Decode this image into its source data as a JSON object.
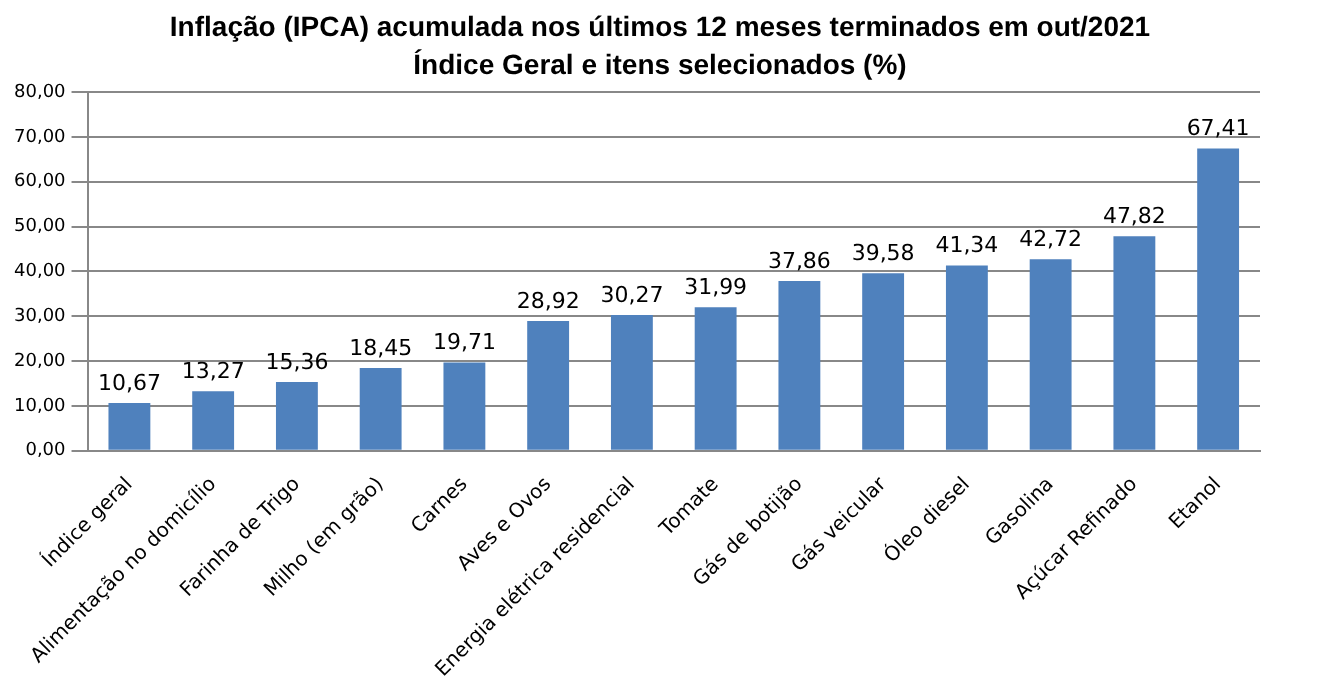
{
  "chart_data": {
    "type": "bar",
    "title": "Inflação (IPCA) acumulada nos últimos 12 meses terminados em out/2021",
    "subtitle": "Índice Geral e itens selecionados (%)",
    "categories": [
      "Índice geral",
      "Alimentação no domicílio",
      "Farinha de Trigo",
      "Milho (em grão)",
      "Carnes",
      "Aves e Ovos",
      "Energia elétrica residencial",
      "Tomate",
      "Gás de botijão",
      "Gás veicular",
      "Óleo diesel",
      "Gasolina",
      "Açúcar Refinado",
      "Etanol"
    ],
    "values": [
      10.67,
      13.27,
      15.36,
      18.45,
      19.71,
      28.92,
      30.27,
      31.99,
      37.86,
      39.58,
      41.34,
      42.72,
      47.82,
      67.41
    ],
    "value_labels": [
      "10,67",
      "13,27",
      "15,36",
      "18,45",
      "19,71",
      "28,92",
      "30,27",
      "31,99",
      "37,86",
      "39,58",
      "41,34",
      "42,72",
      "47,82",
      "67,41"
    ],
    "color": "#4f81bd",
    "ylim": [
      0,
      80
    ],
    "yticks": [
      {
        "value": 0,
        "label": "0,00"
      },
      {
        "value": 10,
        "label": "10,00"
      },
      {
        "value": 20,
        "label": "20,00"
      },
      {
        "value": 30,
        "label": "30,00"
      },
      {
        "value": 40,
        "label": "40,00"
      },
      {
        "value": 50,
        "label": "50,00"
      },
      {
        "value": 60,
        "label": "60,00"
      },
      {
        "value": 70,
        "label": "70,00"
      },
      {
        "value": 80,
        "label": "80,00"
      }
    ],
    "grid": "y",
    "legend": false
  }
}
